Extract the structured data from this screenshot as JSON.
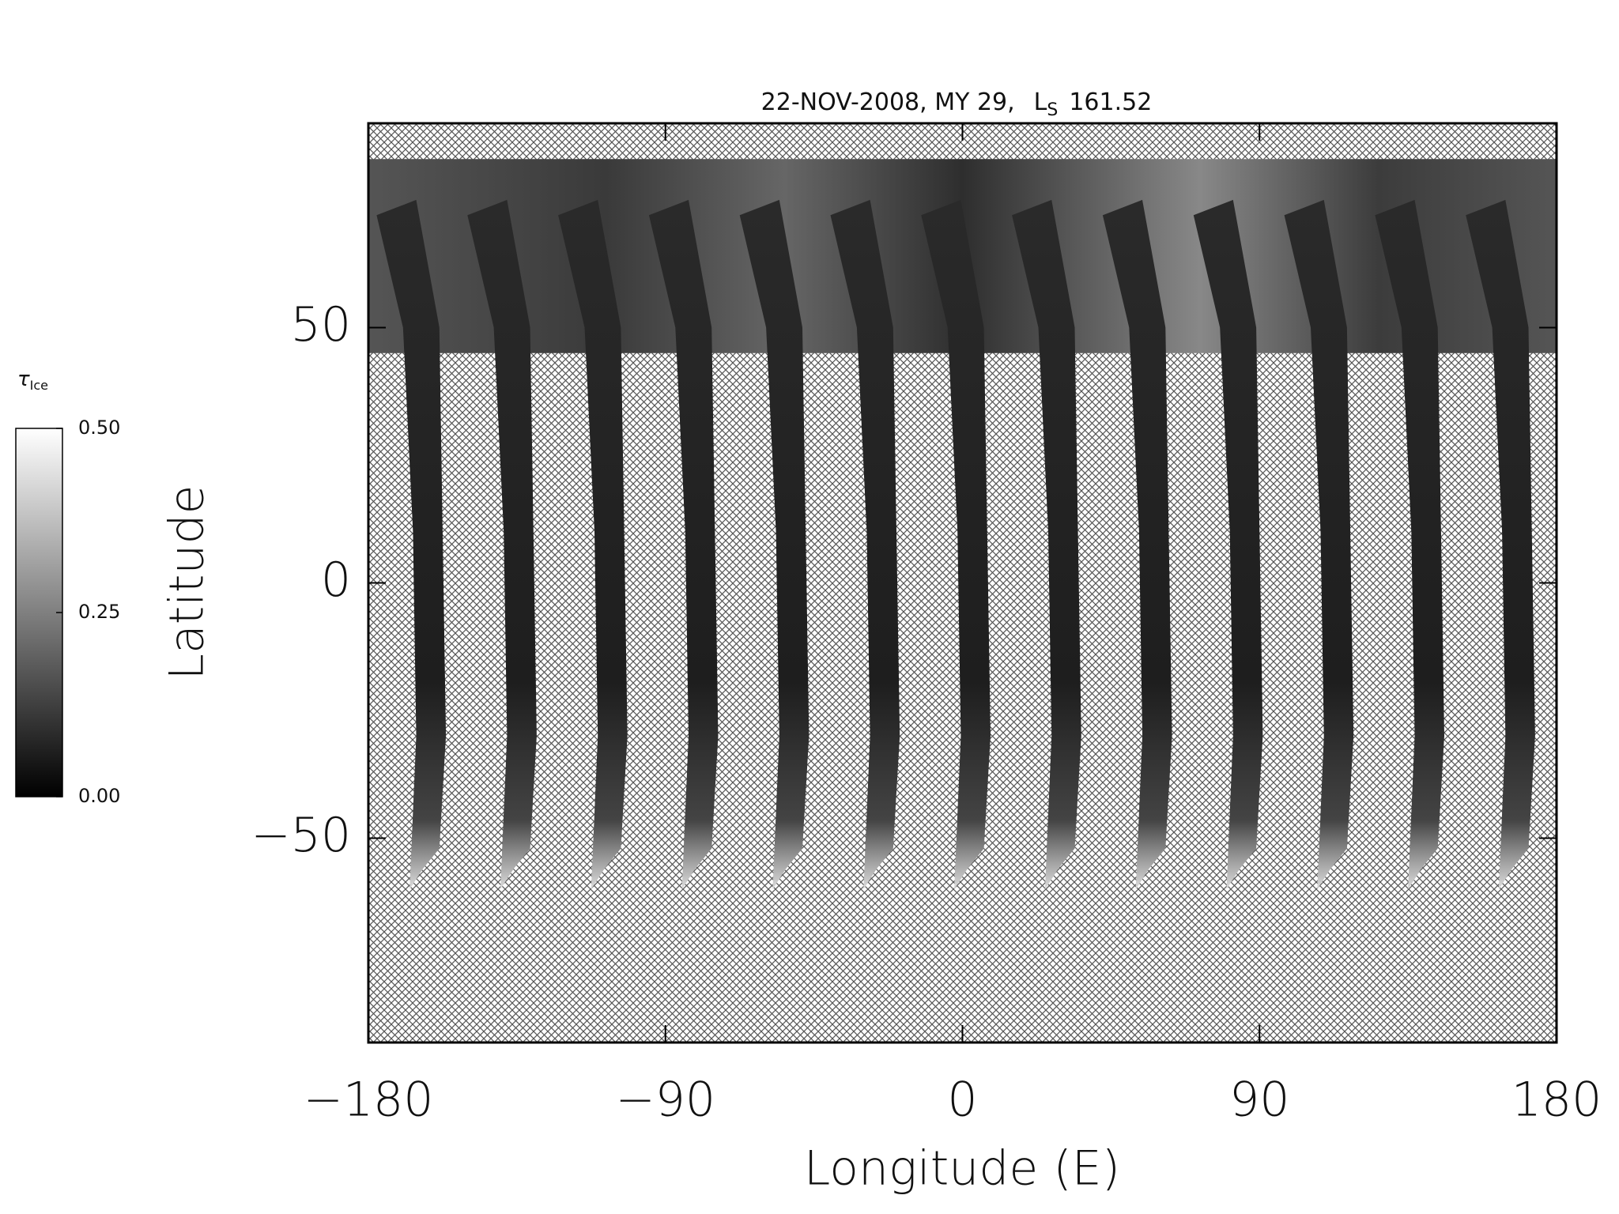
{
  "chart_data": {
    "type": "map",
    "title": {
      "text": "22-NOV-2008, MY 29,",
      "symbol": "L",
      "subscript": "S",
      "value": "161.52"
    },
    "xlabel": "Longitude (E)",
    "ylabel": "Latitude",
    "xlim": [
      -180,
      180
    ],
    "xticks": [
      {
        "value": -180,
        "label": "−180"
      },
      {
        "value": -90,
        "label": "−90"
      },
      0,
      90,
      180
    ],
    "ylim": [
      -90,
      90
    ],
    "yticks": [
      {
        "value": -50,
        "label": "−50"
      },
      0,
      50
    ],
    "colorbar": {
      "label": "τ",
      "label_subscript": "Ice",
      "lim": [
        0,
        0.5
      ],
      "ticks": [
        {
          "value": 0,
          "label": "0.00"
        },
        {
          "value": 0.25,
          "label": "0.25"
        },
        {
          "value": 0.5,
          "label": "0.50"
        }
      ]
    }
  }
}
